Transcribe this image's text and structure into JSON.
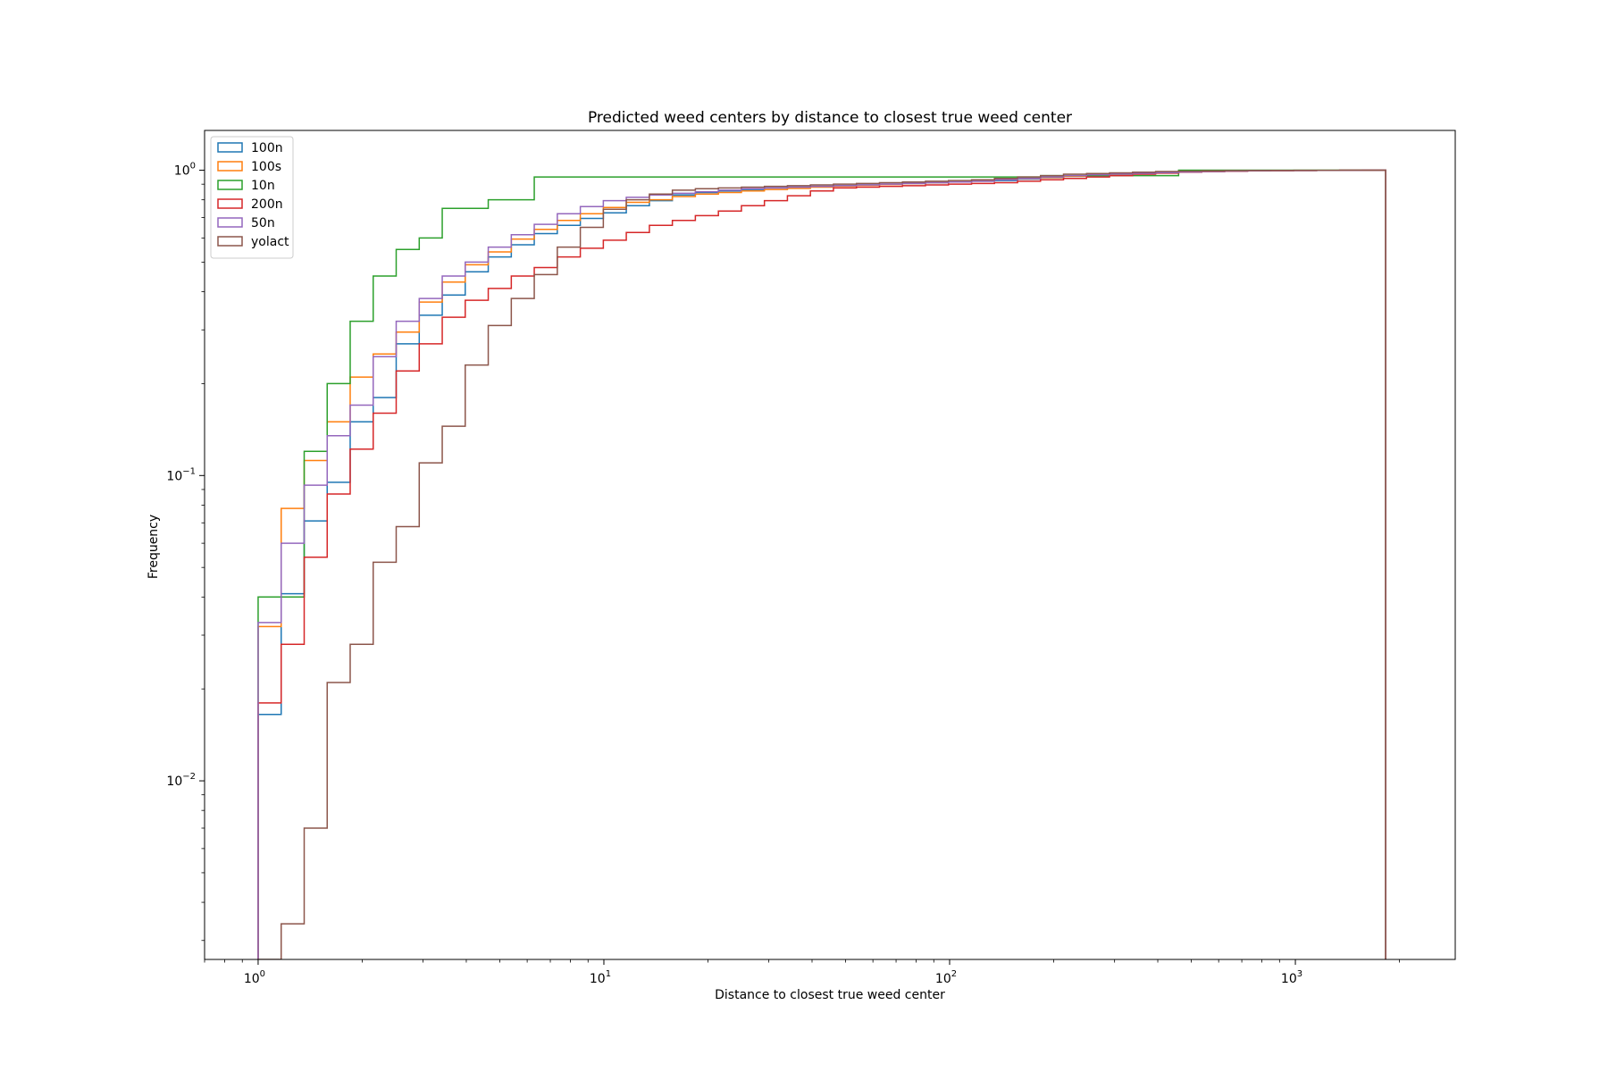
{
  "chart_data": {
    "type": "line",
    "title": "Predicted weed centers by distance to closest true weed center",
    "xlabel": "Distance to closest true weed center",
    "ylabel": "Frequency",
    "xscale": "log",
    "yscale": "log",
    "xlim": [
      0.7,
      2900
    ],
    "ylim": [
      0.0026,
      1.35
    ],
    "x_ticks": [
      {
        "value": 1,
        "base": "10",
        "exp": "0"
      },
      {
        "value": 10,
        "base": "10",
        "exp": "1"
      },
      {
        "value": 100,
        "base": "10",
        "exp": "2"
      },
      {
        "value": 1000,
        "base": "10",
        "exp": "3"
      }
    ],
    "y_ticks": [
      {
        "value": 0.01,
        "base": "10",
        "exp": "−2"
      },
      {
        "value": 0.1,
        "base": "10",
        "exp": "−1"
      },
      {
        "value": 1,
        "base": "10",
        "exp": "0"
      }
    ],
    "grid": false,
    "legend_position": "top-left",
    "histtype": "step",
    "cumulative": true,
    "bin_edges": [
      1.0,
      1.166,
      1.359,
      1.584,
      1.846,
      2.152,
      2.508,
      2.924,
      3.408,
      3.972,
      4.63,
      5.398,
      6.29,
      7.334,
      8.548,
      9.964,
      11.61,
      13.54,
      15.78,
      18.39,
      21.44,
      24.99,
      29.13,
      33.95,
      39.57,
      46.13,
      53.77,
      62.67,
      73.05,
      85.14,
      99.25,
      115.7,
      134.8,
      157.2,
      183.2,
      213.5,
      248.9,
      290.1,
      338.2,
      394.2,
      459.5,
      535.5,
      624.3,
      727.6,
      848.1,
      988.6,
      1152,
      1343,
      1566,
      1825
    ],
    "series": [
      {
        "name": "100n",
        "color": "#1f77b4",
        "values": [
          0.0165,
          0.041,
          0.071,
          0.095,
          0.15,
          0.18,
          0.27,
          0.335,
          0.39,
          0.465,
          0.52,
          0.57,
          0.62,
          0.66,
          0.695,
          0.725,
          0.765,
          0.795,
          0.83,
          0.845,
          0.855,
          0.865,
          0.875,
          0.88,
          0.885,
          0.89,
          0.895,
          0.9,
          0.905,
          0.91,
          0.915,
          0.92,
          0.925,
          0.935,
          0.945,
          0.955,
          0.96,
          0.97,
          0.975,
          0.98,
          0.985,
          0.99,
          0.993,
          0.995,
          0.997,
          0.998,
          0.999,
          0.9995,
          1.0
        ]
      },
      {
        "name": "100s",
        "color": "#ff7f0e",
        "values": [
          0.032,
          0.078,
          0.112,
          0.15,
          0.21,
          0.25,
          0.295,
          0.37,
          0.43,
          0.49,
          0.54,
          0.595,
          0.64,
          0.685,
          0.72,
          0.755,
          0.785,
          0.8,
          0.82,
          0.835,
          0.845,
          0.855,
          0.865,
          0.872,
          0.88,
          0.886,
          0.892,
          0.898,
          0.904,
          0.91,
          0.916,
          0.922,
          0.93,
          0.938,
          0.946,
          0.955,
          0.962,
          0.97,
          0.976,
          0.981,
          0.986,
          0.99,
          0.993,
          0.995,
          0.997,
          0.998,
          0.999,
          0.9995,
          1.0
        ]
      },
      {
        "name": "10n",
        "color": "#2ca02c",
        "values": [
          0.04,
          0.04,
          0.12,
          0.2,
          0.32,
          0.45,
          0.55,
          0.6,
          0.75,
          0.75,
          0.8,
          0.8,
          0.95,
          0.95,
          0.95,
          0.95,
          0.95,
          0.95,
          0.95,
          0.95,
          0.95,
          0.95,
          0.95,
          0.95,
          0.95,
          0.95,
          0.95,
          0.95,
          0.95,
          0.95,
          0.95,
          0.95,
          0.95,
          0.95,
          0.96,
          0.96,
          0.96,
          0.96,
          0.96,
          0.96,
          1.0,
          1.0,
          1.0,
          1.0,
          1.0,
          1.0,
          1.0,
          1.0,
          1.0
        ]
      },
      {
        "name": "200n",
        "color": "#d62728",
        "values": [
          0.018,
          0.028,
          0.054,
          0.087,
          0.122,
          0.16,
          0.22,
          0.27,
          0.33,
          0.375,
          0.41,
          0.45,
          0.48,
          0.52,
          0.555,
          0.59,
          0.625,
          0.66,
          0.685,
          0.71,
          0.735,
          0.765,
          0.795,
          0.825,
          0.855,
          0.875,
          0.88,
          0.885,
          0.89,
          0.895,
          0.9,
          0.905,
          0.91,
          0.92,
          0.93,
          0.94,
          0.95,
          0.96,
          0.97,
          0.978,
          0.985,
          0.99,
          0.993,
          0.995,
          0.997,
          0.998,
          0.999,
          0.9995,
          1.0
        ]
      },
      {
        "name": "50n",
        "color": "#9467bd",
        "values": [
          0.033,
          0.06,
          0.093,
          0.135,
          0.17,
          0.245,
          0.32,
          0.38,
          0.45,
          0.5,
          0.56,
          0.615,
          0.665,
          0.72,
          0.76,
          0.795,
          0.815,
          0.83,
          0.84,
          0.85,
          0.86,
          0.87,
          0.875,
          0.88,
          0.885,
          0.89,
          0.895,
          0.9,
          0.905,
          0.91,
          0.915,
          0.92,
          0.93,
          0.94,
          0.95,
          0.96,
          0.966,
          0.972,
          0.977,
          0.982,
          0.987,
          0.991,
          0.994,
          0.996,
          0.997,
          0.998,
          0.999,
          0.9995,
          1.0
        ]
      },
      {
        "name": "yolact",
        "color": "#8c564b",
        "values": [
          0.0,
          0.0034,
          0.007,
          0.021,
          0.028,
          0.052,
          0.068,
          0.11,
          0.145,
          0.23,
          0.31,
          0.38,
          0.455,
          0.56,
          0.65,
          0.745,
          0.8,
          0.835,
          0.86,
          0.87,
          0.875,
          0.88,
          0.885,
          0.89,
          0.895,
          0.9,
          0.905,
          0.91,
          0.915,
          0.92,
          0.925,
          0.93,
          0.94,
          0.95,
          0.96,
          0.97,
          0.975,
          0.98,
          0.985,
          0.99,
          0.993,
          0.995,
          0.997,
          0.998,
          0.999,
          0.9995,
          0.9998,
          0.9999,
          1.0
        ]
      }
    ]
  }
}
